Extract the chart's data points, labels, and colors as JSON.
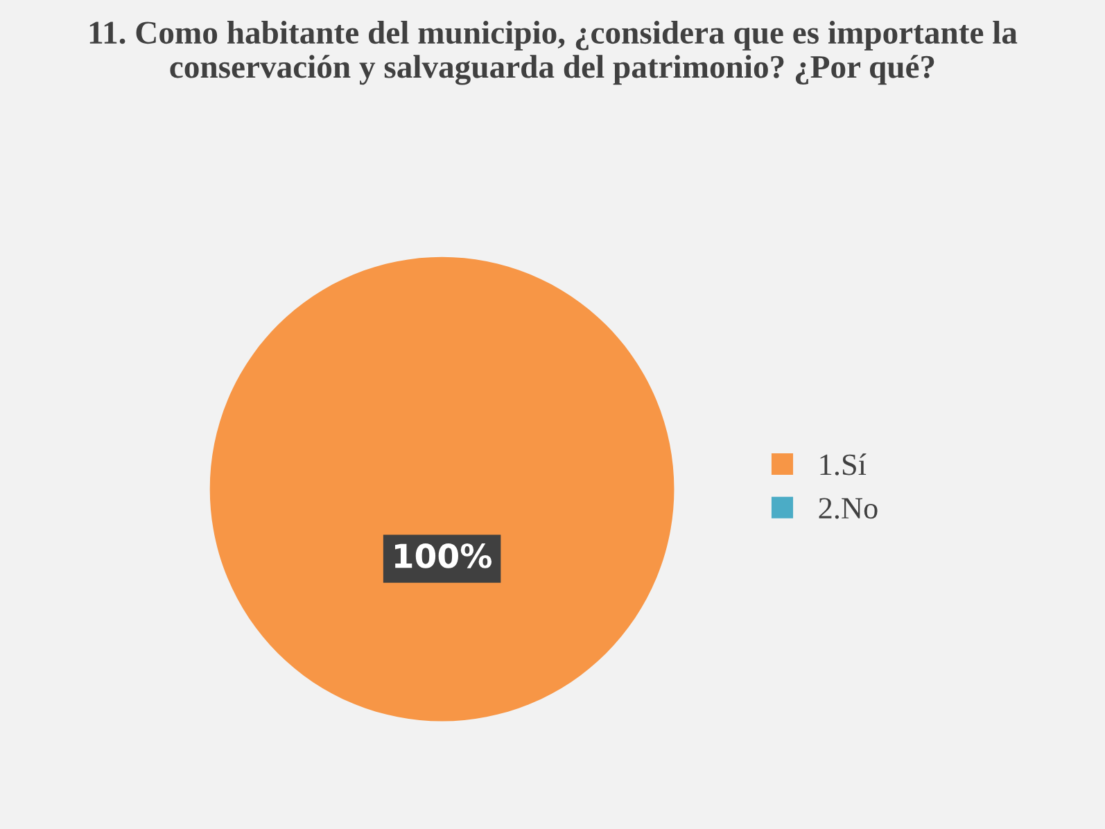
{
  "chart_data": {
    "type": "pie",
    "title": "11. Como habitante del municipio, ¿considera que es importante la conservación y salvaguarda del patrimonio? ¿Por qué?",
    "categories": [
      "1.Sí",
      "2.No"
    ],
    "values": [
      100,
      0
    ],
    "colors": [
      "#f79646",
      "#4bacc6"
    ],
    "value_labels": [
      "100%",
      null
    ],
    "legend": "right"
  }
}
